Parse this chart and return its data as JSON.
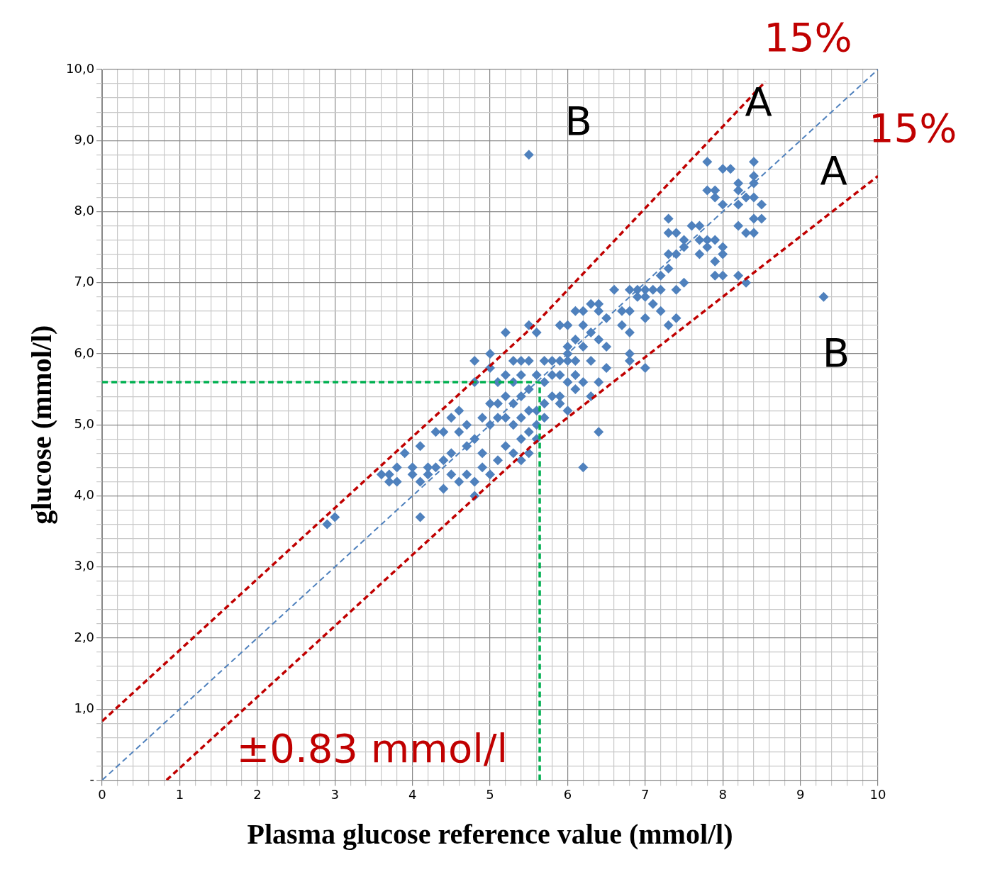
{
  "chart_data": {
    "type": "scatter",
    "xlabel": "Plasma glucose reference value (mmol/l)",
    "ylabel": "glucose (mmol/l)",
    "xlim": [
      0,
      10
    ],
    "ylim": [
      0,
      10
    ],
    "xticks": [
      0,
      {
        "value": 0.2,
        "label": null
      },
      {
        "value": 0.4,
        "label": null
      },
      {
        "value": 0.6,
        "label": null
      },
      {
        "value": 0.8,
        "label": null
      },
      1,
      {
        "value": 1.2,
        "label": null
      },
      {
        "value": 1.4,
        "label": null
      },
      {
        "value": 1.6,
        "label": null
      },
      {
        "value": 1.8,
        "label": null
      },
      2,
      {
        "value": 2.2,
        "label": null
      },
      {
        "value": 2.4,
        "label": null
      },
      {
        "value": 2.6,
        "label": null
      },
      {
        "value": 2.8,
        "label": null
      },
      3,
      {
        "value": 3.2,
        "label": null
      },
      {
        "value": 3.4,
        "label": null
      },
      {
        "value": 3.6,
        "label": null
      },
      {
        "value": 3.8,
        "label": null
      },
      4,
      {
        "value": 4.2,
        "label": null
      },
      {
        "value": 4.4,
        "label": null
      },
      {
        "value": 4.6,
        "label": null
      },
      {
        "value": 4.8,
        "label": null
      },
      5,
      {
        "value": 5.2,
        "label": null
      },
      {
        "value": 5.4,
        "label": null
      },
      {
        "value": 5.6,
        "label": null
      },
      {
        "value": 5.8,
        "label": null
      },
      6,
      {
        "value": 6.2,
        "label": null
      },
      {
        "value": 6.4,
        "label": null
      },
      {
        "value": 6.6,
        "label": null
      },
      {
        "value": 6.8,
        "label": null
      },
      7,
      {
        "value": 7.2,
        "label": null
      },
      {
        "value": 7.4,
        "label": null
      },
      {
        "value": 7.6,
        "label": null
      },
      {
        "value": 7.8,
        "label": null
      },
      8,
      {
        "value": 8.2,
        "label": null
      },
      {
        "value": 8.4,
        "label": null
      },
      {
        "value": 8.6,
        "label": null
      },
      {
        "value": 8.8,
        "label": null
      },
      9,
      {
        "value": 9.2,
        "label": null
      },
      {
        "value": 9.4,
        "label": null
      },
      {
        "value": 9.6,
        "label": null
      },
      {
        "value": 9.8,
        "label": null
      },
      10
    ],
    "yticks": [
      {
        "value": 0,
        "label": "-"
      },
      {
        "value": 0.2,
        "label": null
      },
      {
        "value": 0.4,
        "label": null
      },
      {
        "value": 0.6,
        "label": null
      },
      {
        "value": 0.8,
        "label": null
      },
      {
        "value": 1,
        "label": "1,0"
      },
      {
        "value": 1.2,
        "label": null
      },
      {
        "value": 1.4,
        "label": null
      },
      {
        "value": 1.6,
        "label": null
      },
      {
        "value": 1.8,
        "label": null
      },
      {
        "value": 2,
        "label": "2,0"
      },
      {
        "value": 2.2,
        "label": null
      },
      {
        "value": 2.4,
        "label": null
      },
      {
        "value": 2.6,
        "label": null
      },
      {
        "value": 2.8,
        "label": null
      },
      {
        "value": 3,
        "label": "3,0"
      },
      {
        "value": 3.2,
        "label": null
      },
      {
        "value": 3.4,
        "label": null
      },
      {
        "value": 3.6,
        "label": null
      },
      {
        "value": 3.8,
        "label": null
      },
      {
        "value": 4,
        "label": "4,0"
      },
      {
        "value": 4.2,
        "label": null
      },
      {
        "value": 4.4,
        "label": null
      },
      {
        "value": 4.6,
        "label": null
      },
      {
        "value": 4.8,
        "label": null
      },
      {
        "value": 5,
        "label": "5,0"
      },
      {
        "value": 5.2,
        "label": null
      },
      {
        "value": 5.4,
        "label": null
      },
      {
        "value": 5.6,
        "label": null
      },
      {
        "value": 5.8,
        "label": null
      },
      {
        "value": 6,
        "label": "6,0"
      },
      {
        "value": 6.2,
        "label": null
      },
      {
        "value": 6.4,
        "label": null
      },
      {
        "value": 6.6,
        "label": null
      },
      {
        "value": 6.8,
        "label": null
      },
      {
        "value": 7,
        "label": "7,0"
      },
      {
        "value": 7.2,
        "label": null
      },
      {
        "value": 7.4,
        "label": null
      },
      {
        "value": 7.6,
        "label": null
      },
      {
        "value": 7.8,
        "label": null
      },
      {
        "value": 8,
        "label": "8,0"
      },
      {
        "value": 8.2,
        "label": null
      },
      {
        "value": 8.4,
        "label": null
      },
      {
        "value": 8.6,
        "label": null
      },
      {
        "value": 8.8,
        "label": null
      },
      {
        "value": 9,
        "label": "9,0"
      },
      {
        "value": 9.2,
        "label": null
      },
      {
        "value": 9.4,
        "label": null
      },
      {
        "value": 9.6,
        "label": null
      },
      {
        "value": 9.8,
        "label": null
      },
      {
        "value": 10,
        "label": "10,0"
      }
    ],
    "grid": true,
    "annotations": [
      "15%",
      "A",
      "15%",
      "A",
      "B",
      "B",
      "±0.83 mmol/l"
    ],
    "series": [
      {
        "type": "line",
        "color": "#4f81bd",
        "line_style": "dashed",
        "marker": "none",
        "x": [
          0,
          10
        ],
        "values": [
          0,
          10
        ]
      },
      {
        "type": "line",
        "color": "#c00000",
        "line_style": "dashed",
        "marker": "none",
        "x": [
          0,
          5.55,
          8.55
        ],
        "values": [
          0.83,
          6.38,
          9.83
        ]
      },
      {
        "type": "line",
        "color": "#c00000",
        "line_style": "dashed",
        "marker": "none",
        "x": [
          0.83,
          5.55,
          10
        ],
        "values": [
          0,
          4.72,
          8.5
        ]
      },
      {
        "type": "line",
        "color": "#00b050",
        "line_style": "dashed",
        "marker": "none",
        "x": [
          0,
          5.64
        ],
        "values": [
          5.6,
          5.6
        ]
      },
      {
        "type": "line",
        "color": "#00b050",
        "line_style": "dashed",
        "marker": "none",
        "x": [
          5.64,
          5.64
        ],
        "values": [
          0,
          5.6
        ]
      },
      {
        "color": "#4f81bd",
        "marker": "diamond",
        "x": [
          5.5,
          9.3,
          6.2,
          6.4,
          4.1,
          2.9,
          3.0,
          7.8,
          8.4,
          8.0,
          8.1,
          8.4,
          8.4,
          8.2,
          7.8,
          7.9,
          8.2,
          8.3,
          7.9,
          8.0,
          8.2,
          8.5,
          8.4,
          7.3,
          8.5,
          8.4,
          8.2,
          8.4,
          8.3,
          7.6,
          7.7,
          7.3,
          7.4,
          7.5,
          7.5,
          7.8,
          7.7,
          7.9,
          7.8,
          8.0,
          7.3,
          7.4,
          7.7,
          8.0,
          7.9,
          7.3,
          7.2,
          7.9,
          8.0,
          8.2,
          8.3,
          7.5,
          7.4,
          6.6,
          6.8,
          6.9,
          7.0,
          7.1,
          7.2,
          6.9,
          7.0,
          7.1,
          6.7,
          6.8,
          7.0,
          6.5,
          7.2,
          7.3,
          7.4,
          6.4,
          6.4,
          6.3,
          6.1,
          6.2,
          6.7,
          6.8,
          6.0,
          5.9,
          6.2,
          6.3,
          6.4,
          6.5,
          6.1,
          6.2,
          6.8,
          6.8,
          7.0,
          6.5,
          6.4,
          6.3,
          6.3,
          6.0,
          6.0,
          6.1,
          6.0,
          5.9,
          5.8,
          5.7,
          6.1,
          6.2,
          6.1,
          6.0,
          5.9,
          5.8,
          5.7,
          5.6,
          5.9,
          5.9,
          6.0,
          5.8,
          5.7,
          5.6,
          5.7,
          5.6,
          5.5,
          5.6,
          5.5,
          5.4,
          5.3,
          5.6,
          5.5,
          5.2,
          5.0,
          4.8,
          5.0,
          4.8,
          5.1,
          5.2,
          5.3,
          5.4,
          5.5,
          5.4,
          5.3,
          5.2,
          5.1,
          5.0,
          5.1,
          5.0,
          4.9,
          5.2,
          5.3,
          5.4,
          5.5,
          5.4,
          5.3,
          5.4,
          5.5,
          5.2,
          5.1,
          5.0,
          4.9,
          4.8,
          4.7,
          4.6,
          4.5,
          4.6,
          4.4,
          4.3,
          4.7,
          4.5,
          4.4,
          4.3,
          4.2,
          4.1,
          4.0,
          4.2,
          4.4,
          4.5,
          4.6,
          4.7,
          4.8,
          4.9,
          4.8,
          3.6,
          3.7,
          3.8,
          3.9,
          3.8,
          4.0,
          4.1,
          3.7
        ],
        "values": [
          8.8,
          6.8,
          4.4,
          4.9,
          3.7,
          3.6,
          3.7,
          8.7,
          8.7,
          8.6,
          8.6,
          8.5,
          8.4,
          8.4,
          8.3,
          8.3,
          8.3,
          8.2,
          8.2,
          8.1,
          8.1,
          8.1,
          8.2,
          7.9,
          7.9,
          7.9,
          7.8,
          7.7,
          7.7,
          7.8,
          7.8,
          7.7,
          7.7,
          7.6,
          7.5,
          7.6,
          7.6,
          7.6,
          7.5,
          7.5,
          7.4,
          7.4,
          7.4,
          7.4,
          7.3,
          7.2,
          7.1,
          7.1,
          7.1,
          7.1,
          7.0,
          7.0,
          6.9,
          6.9,
          6.9,
          6.9,
          6.9,
          6.9,
          6.9,
          6.8,
          6.8,
          6.7,
          6.6,
          6.6,
          6.5,
          6.5,
          6.6,
          6.4,
          6.5,
          6.6,
          6.7,
          6.7,
          6.6,
          6.6,
          6.4,
          6.3,
          6.4,
          6.4,
          6.4,
          6.3,
          6.2,
          6.1,
          6.2,
          6.1,
          6.0,
          5.9,
          5.8,
          5.8,
          5.6,
          5.9,
          5.4,
          6.1,
          6.0,
          5.9,
          5.9,
          5.9,
          5.9,
          5.9,
          5.7,
          5.6,
          5.5,
          5.6,
          5.7,
          5.7,
          5.6,
          5.7,
          5.4,
          5.3,
          5.2,
          5.4,
          5.3,
          5.2,
          5.1,
          5.0,
          4.9,
          4.8,
          5.9,
          5.9,
          5.9,
          6.3,
          6.4,
          6.3,
          6.0,
          5.9,
          5.8,
          5.6,
          5.6,
          5.7,
          5.6,
          5.7,
          5.5,
          5.4,
          5.3,
          5.4,
          5.3,
          5.3,
          5.1,
          5.0,
          5.1,
          5.1,
          5.0,
          5.1,
          5.2,
          4.8,
          4.6,
          4.5,
          4.6,
          4.7,
          4.5,
          4.3,
          4.6,
          4.8,
          5.0,
          5.2,
          5.1,
          4.9,
          4.9,
          4.9,
          4.7,
          4.6,
          4.5,
          4.4,
          4.4,
          4.7,
          4.4,
          4.3,
          4.1,
          4.3,
          4.2,
          4.3,
          4.2,
          4.4,
          4.0,
          4.3,
          4.2,
          4.2,
          4.6,
          4.4,
          4.3,
          4.2,
          4.3
        ]
      }
    ]
  }
}
